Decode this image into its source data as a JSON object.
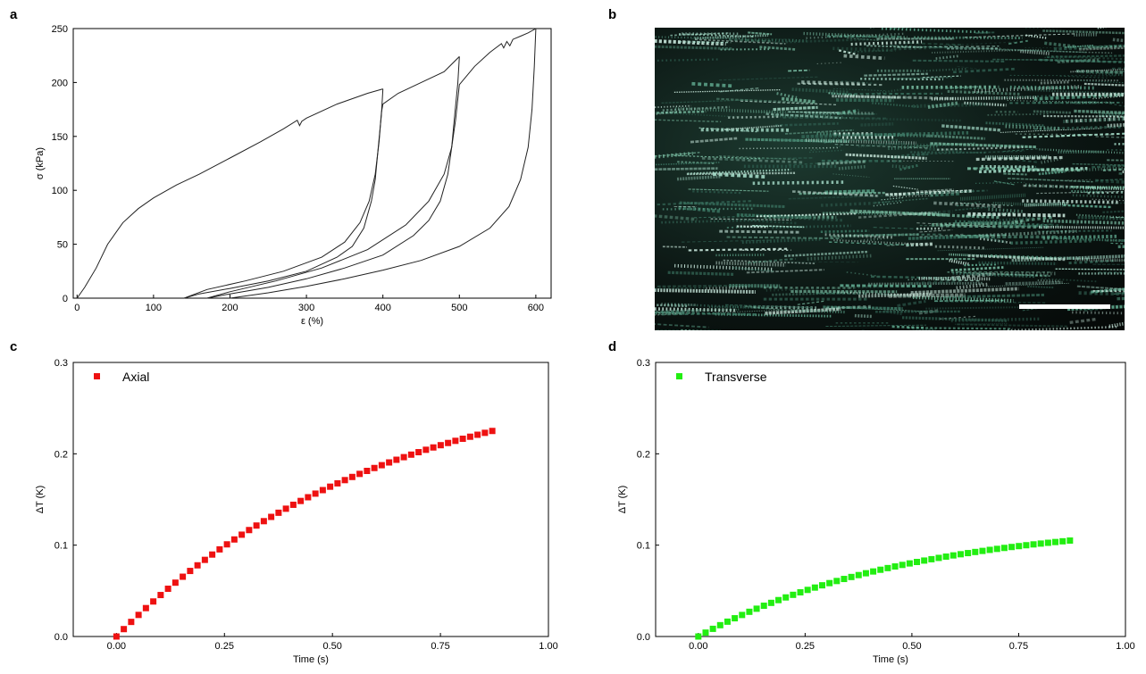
{
  "panels": {
    "a": {
      "letter": "a"
    },
    "b": {
      "letter": "b"
    },
    "c": {
      "letter": "c"
    },
    "d": {
      "letter": "d"
    }
  },
  "chart_data": [
    {
      "panel": "a",
      "type": "line",
      "xlabel": "ε (%)",
      "ylabel": "σ (kPa)",
      "xlim": [
        -5,
        620
      ],
      "ylim": [
        0,
        250
      ],
      "xticks": [
        0,
        100,
        200,
        300,
        400,
        500,
        600
      ],
      "yticks": [
        0,
        50,
        100,
        150,
        200,
        250
      ],
      "grid": false,
      "series": [
        {
          "x": [
            0,
            10,
            25,
            40,
            60,
            80,
            100,
            130,
            160,
            200,
            240,
            270,
            288,
            291,
            294,
            300,
            340,
            380,
            400
          ],
          "y": [
            0,
            10,
            28,
            50,
            70,
            83,
            93,
            105,
            115,
            130,
            145,
            157,
            165,
            160,
            164,
            167,
            180,
            190,
            194
          ]
        },
        {
          "x": [
            400,
            398,
            394,
            390,
            385,
            375,
            360,
            340,
            300,
            250,
            200,
            160,
            140
          ],
          "y": [
            194,
            170,
            140,
            110,
            90,
            65,
            48,
            38,
            25,
            16,
            9,
            4,
            0
          ]
        },
        {
          "x": [
            140,
            170,
            220,
            270,
            320,
            350,
            370,
            382,
            390,
            395,
            398,
            400,
            420,
            450,
            480,
            500
          ],
          "y": [
            0,
            8,
            16,
            25,
            38,
            52,
            70,
            90,
            115,
            145,
            172,
            180,
            190,
            200,
            210,
            224
          ]
        },
        {
          "x": [
            500,
            498,
            494,
            490,
            485,
            475,
            460,
            440,
            400,
            350,
            300,
            250,
            200,
            170
          ],
          "y": [
            224,
            200,
            170,
            140,
            115,
            90,
            72,
            58,
            40,
            28,
            18,
            10,
            4,
            0
          ]
        },
        {
          "x": [
            170,
            200,
            260,
            320,
            380,
            430,
            460,
            480,
            490,
            495,
            498,
            500,
            520,
            540,
            555,
            558,
            562,
            566,
            570,
            580,
            590,
            600
          ],
          "y": [
            0,
            6,
            16,
            28,
            45,
            68,
            90,
            115,
            140,
            165,
            185,
            198,
            215,
            228,
            236,
            232,
            238,
            234,
            240,
            243,
            246,
            250
          ]
        },
        {
          "x": [
            600,
            598,
            595,
            590,
            580,
            565,
            540,
            500,
            450,
            400,
            350,
            300,
            250,
            200
          ],
          "y": [
            250,
            215,
            175,
            140,
            110,
            85,
            65,
            48,
            35,
            26,
            18,
            11,
            5,
            0
          ]
        }
      ]
    },
    {
      "panel": "c",
      "type": "scatter",
      "xlabel": "Time (s)",
      "ylabel": "ΔT (K)",
      "xlim": [
        -0.1,
        1.0
      ],
      "ylim": [
        0,
        0.3
      ],
      "xticks": [
        -0.25,
        0.0,
        0.25,
        0.5,
        0.75,
        1.0
      ],
      "xticklabels": [
        "",
        "0.00",
        "0.25",
        "0.50",
        "0.75",
        "1.00"
      ],
      "yticks": [
        0.0,
        0.1,
        0.2,
        0.3
      ],
      "yticklabels": [
        "0.0",
        "0.1",
        "0.2",
        "0.3"
      ],
      "color": "#ee1111",
      "legend_position": "top-left",
      "series": [
        {
          "name": "Axial",
          "x_start": 0.0,
          "x_end": 0.87,
          "n": 52,
          "y_end": 0.225,
          "tau": 0.62
        }
      ]
    },
    {
      "panel": "d",
      "type": "scatter",
      "xlabel": "Time (s)",
      "ylabel": "ΔT (K)",
      "xlim": [
        -0.1,
        1.0
      ],
      "ylim": [
        0,
        0.3
      ],
      "xticks": [
        -0.25,
        0.0,
        0.25,
        0.5,
        0.75,
        1.0
      ],
      "xticklabels": [
        "",
        "0.00",
        "0.25",
        "0.50",
        "0.75",
        "1.00"
      ],
      "yticks": [
        0.0,
        0.1,
        0.2,
        0.3
      ],
      "yticklabels": [
        "0.0",
        "0.1",
        "0.2",
        "0.3"
      ],
      "color": "#22ee11",
      "legend_position": "top-left",
      "series": [
        {
          "name": "Transverse",
          "x_start": 0.0,
          "x_end": 0.87,
          "n": 52,
          "y_end": 0.105,
          "tau": 0.5
        }
      ]
    }
  ]
}
